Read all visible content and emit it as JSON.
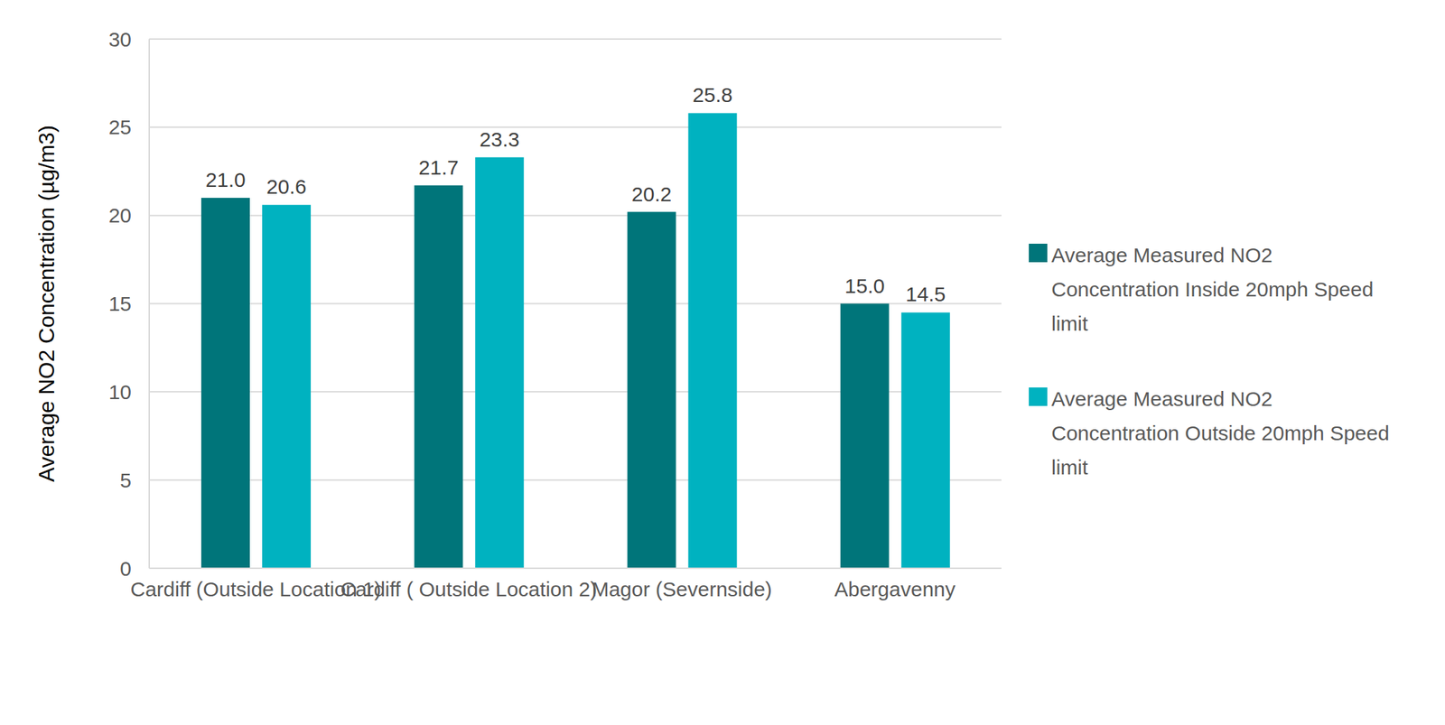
{
  "chart_data": {
    "type": "bar",
    "y_label": "Average NO2 Concentration (µg/m3)",
    "categories": [
      "Cardiff (Outside Location 1)",
      "Cardiff ( Outside Location 2)",
      "Magor (Severnside)",
      "Abergavenny"
    ],
    "series": [
      {
        "name": "Average Measured NO2 Concentration Inside 20mph Speed limit",
        "color": "#00757A",
        "values": [
          21.0,
          21.7,
          20.2,
          15.0
        ],
        "value_labels": [
          "21.0",
          "21.7",
          "20.2",
          "15.0"
        ]
      },
      {
        "name": "Average Measured NO2 Concentration Outside 20mph Speed limit",
        "color": "#00B2C0",
        "values": [
          20.6,
          23.3,
          25.8,
          14.5
        ],
        "value_labels": [
          "20.6",
          "23.3",
          "25.8",
          "14.5"
        ]
      }
    ],
    "ylim": [
      0,
      30
    ],
    "yticks": [
      0,
      5,
      10,
      15,
      20,
      25,
      30
    ],
    "grid": true,
    "legend": "right",
    "data_labels": true
  }
}
